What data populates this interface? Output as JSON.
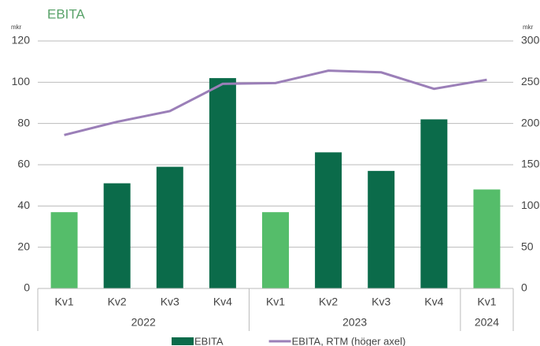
{
  "chart_data": {
    "type": "bar-line",
    "title": "EBITA",
    "y_unit": "mkr",
    "y2_unit": "mkr",
    "categories": [
      "Kv1",
      "Kv2",
      "Kv3",
      "Kv4",
      "Kv1",
      "Kv2",
      "Kv3",
      "Kv4",
      "Kv1"
    ],
    "groups": [
      {
        "label": "2022",
        "size": 4
      },
      {
        "label": "2023",
        "size": 4
      },
      {
        "label": "2024",
        "size": 1
      }
    ],
    "series": [
      {
        "name": "EBITA",
        "type": "bar",
        "color": "#0b6b4a",
        "colors": [
          "#55bd6a",
          "#0b6b4a",
          "#0b6b4a",
          "#0b6b4a",
          "#55bd6a",
          "#0b6b4a",
          "#0b6b4a",
          "#0b6b4a",
          "#55bd6a"
        ],
        "values": [
          37,
          51,
          59,
          102,
          37,
          66,
          57,
          82,
          48
        ]
      },
      {
        "name": "EBITA, RTM (höger axel)",
        "type": "line",
        "axis": "y2",
        "color": "#9b7fb8",
        "values": [
          186,
          202,
          215,
          248,
          249,
          264,
          262,
          242,
          253
        ]
      }
    ],
    "ylim": [
      0,
      120
    ],
    "yticks": [
      0,
      20,
      40,
      60,
      80,
      100,
      120
    ],
    "y2lim": [
      0,
      300
    ],
    "y2ticks": [
      0,
      50,
      100,
      150,
      200,
      250,
      300
    ],
    "grid": true
  }
}
